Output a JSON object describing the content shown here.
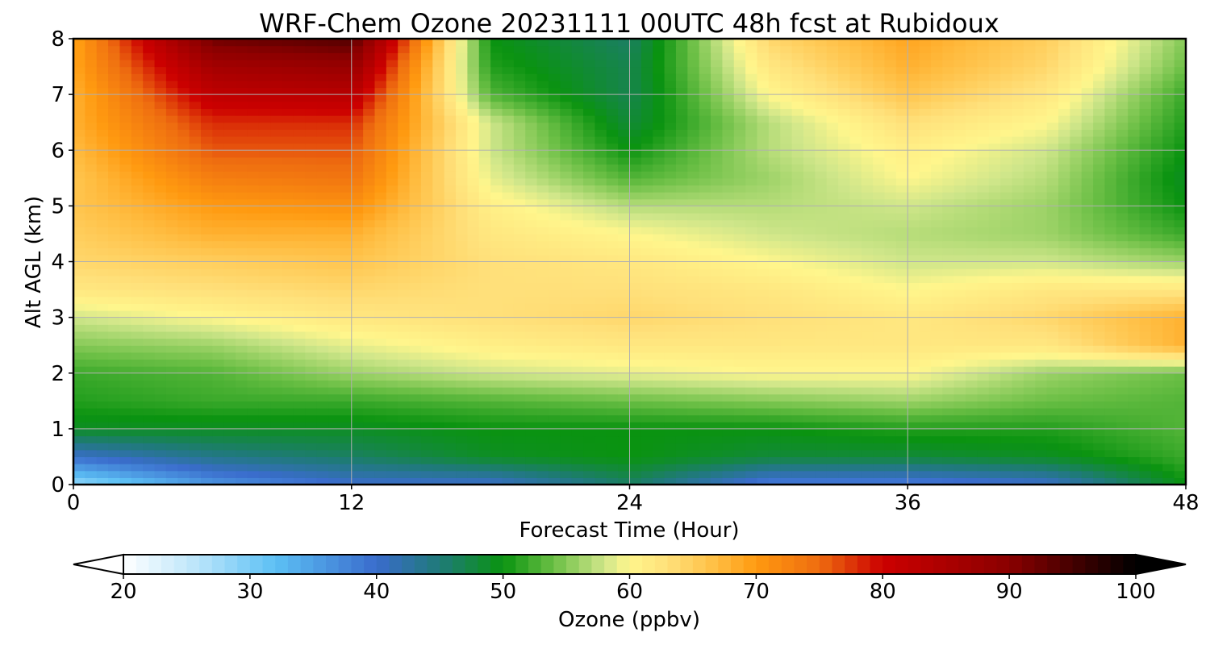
{
  "chart_data": {
    "type": "heatmap",
    "title": "WRF-Chem Ozone  20231111 00UTC 48h fcst at Rubidoux",
    "xlabel": "Forecast Time (Hour)",
    "ylabel": "Alt AGL (km)",
    "xlim": [
      0,
      48
    ],
    "ylim": [
      0,
      8
    ],
    "x_ticks": [
      0,
      12,
      24,
      36,
      48
    ],
    "y_ticks": [
      0,
      1,
      2,
      3,
      4,
      5,
      6,
      7,
      8
    ],
    "grid": true,
    "x": [
      0,
      6,
      12,
      18,
      24,
      30,
      36,
      42,
      48
    ],
    "y": [
      0,
      0.5,
      1,
      1.5,
      2,
      2.5,
      3,
      3.5,
      4,
      4.5,
      5,
      5.5,
      6,
      6.5,
      7,
      7.5,
      8
    ],
    "z": [
      [
        28,
        36,
        40,
        40,
        46,
        38,
        38,
        40,
        50
      ],
      [
        40,
        44,
        46,
        49,
        50,
        48,
        48,
        49,
        52
      ],
      [
        49,
        49,
        49,
        50,
        50,
        50,
        51,
        51,
        53
      ],
      [
        51,
        52,
        52,
        53,
        54,
        55,
        56,
        54,
        53
      ],
      [
        52,
        53,
        56,
        58,
        59,
        60,
        60,
        56,
        54
      ],
      [
        55,
        56,
        59,
        61,
        62,
        62,
        62,
        62,
        68
      ],
      [
        58,
        60,
        62,
        63,
        64,
        63,
        62,
        64,
        68
      ],
      [
        62,
        63,
        64,
        63,
        63,
        62,
        60,
        62,
        62
      ],
      [
        64,
        65,
        66,
        63,
        62,
        60,
        58,
        58,
        56
      ],
      [
        65,
        68,
        68,
        62,
        60,
        58,
        57,
        56,
        52
      ],
      [
        66,
        70,
        71,
        61,
        57,
        57,
        58,
        56,
        50
      ],
      [
        66,
        73,
        74,
        59,
        53,
        56,
        60,
        57,
        49
      ],
      [
        67,
        76,
        76,
        58,
        50,
        57,
        61,
        58,
        50
      ],
      [
        68,
        78,
        78,
        58,
        48,
        57,
        63,
        60,
        51
      ],
      [
        68,
        82,
        83,
        53,
        47,
        60,
        66,
        62,
        52
      ],
      [
        69,
        86,
        88,
        51,
        47,
        62,
        68,
        64,
        54
      ],
      [
        69,
        92,
        94,
        50,
        46,
        64,
        69,
        65,
        55
      ]
    ],
    "colorbar": {
      "label": "Ozone  (ppbv)",
      "min": 20,
      "max": 100,
      "ticks": [
        20,
        30,
        40,
        50,
        60,
        70,
        80,
        90,
        100
      ],
      "extend": "both",
      "stops": [
        {
          "v": 20,
          "c": "#ffffff"
        },
        {
          "v": 26,
          "c": "#b8e4fa"
        },
        {
          "v": 32,
          "c": "#5cc0f5"
        },
        {
          "v": 40,
          "c": "#3a6ccc"
        },
        {
          "v": 45,
          "c": "#1f7a78"
        },
        {
          "v": 50,
          "c": "#0a9310"
        },
        {
          "v": 54,
          "c": "#6bbf45"
        },
        {
          "v": 58,
          "c": "#cfe68a"
        },
        {
          "v": 60,
          "c": "#fff68c"
        },
        {
          "v": 63,
          "c": "#ffe07a"
        },
        {
          "v": 67,
          "c": "#ffbc40"
        },
        {
          "v": 70,
          "c": "#ff9a10"
        },
        {
          "v": 75,
          "c": "#ee6c10"
        },
        {
          "v": 80,
          "c": "#cc0000"
        },
        {
          "v": 90,
          "c": "#8a0000"
        },
        {
          "v": 100,
          "c": "#000000"
        }
      ]
    }
  }
}
